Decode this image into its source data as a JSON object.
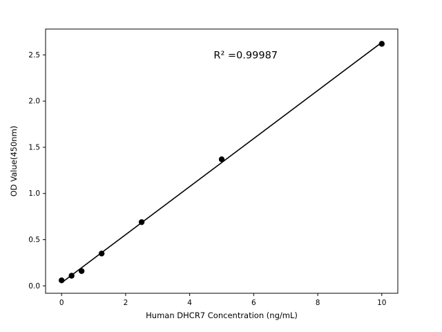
{
  "chart_data": {
    "type": "scatter",
    "title": "",
    "xlabel": "Human DHCR7 Concentration (ng/mL)",
    "ylabel": "OD Value(450nm)",
    "annotation": "R² =0.99987",
    "annotation_xy": [
      4.75,
      2.46
    ],
    "x": [
      0,
      0.3125,
      0.625,
      1.25,
      2.5,
      5,
      10
    ],
    "y": [
      0.06,
      0.11,
      0.16,
      0.35,
      0.69,
      1.37,
      2.62
    ],
    "fit_line": true,
    "xlim": [
      -0.5,
      10.5
    ],
    "ylim": [
      -0.08,
      2.78
    ],
    "xticks": [
      0,
      2,
      4,
      6,
      8,
      10
    ],
    "yticks": [
      0.0,
      0.5,
      1.0,
      1.5,
      2.0,
      2.5
    ],
    "grid": false,
    "legend": "none",
    "marker_color": "#000000",
    "line_color": "#000000",
    "background_color": "#ffffff"
  }
}
